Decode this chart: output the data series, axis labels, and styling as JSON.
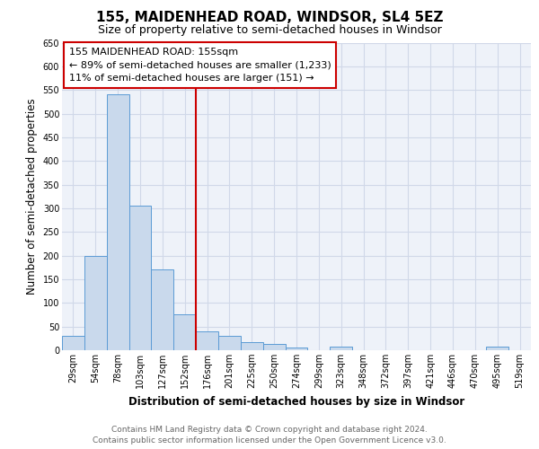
{
  "title_line1": "155, MAIDENHEAD ROAD, WINDSOR, SL4 5EZ",
  "title_line2": "Size of property relative to semi-detached houses in Windsor",
  "xlabel": "Distribution of semi-detached houses by size in Windsor",
  "ylabel": "Number of semi-detached properties",
  "categories": [
    "29sqm",
    "54sqm",
    "78sqm",
    "103sqm",
    "127sqm",
    "152sqm",
    "176sqm",
    "201sqm",
    "225sqm",
    "250sqm",
    "274sqm",
    "299sqm",
    "323sqm",
    "348sqm",
    "372sqm",
    "397sqm",
    "421sqm",
    "446sqm",
    "470sqm",
    "495sqm",
    "519sqm"
  ],
  "values": [
    30,
    200,
    540,
    305,
    170,
    75,
    40,
    30,
    18,
    14,
    5,
    0,
    7,
    0,
    0,
    0,
    0,
    0,
    0,
    7,
    0
  ],
  "bar_color": "#c9d9ec",
  "bar_edge_color": "#5b9bd5",
  "vline_x_index": 5,
  "vline_color": "#cc0000",
  "annotation_box_color": "#cc0000",
  "annotation_text_line1": "155 MAIDENHEAD ROAD: 155sqm",
  "annotation_text_line2": "← 89% of semi-detached houses are smaller (1,233)",
  "annotation_text_line3": "11% of semi-detached houses are larger (151) →",
  "ylim": [
    0,
    650
  ],
  "yticks": [
    0,
    50,
    100,
    150,
    200,
    250,
    300,
    350,
    400,
    450,
    500,
    550,
    600,
    650
  ],
  "grid_color": "#d0d8e8",
  "bg_color": "#eef2f9",
  "footer_line1": "Contains HM Land Registry data © Crown copyright and database right 2024.",
  "footer_line2": "Contains public sector information licensed under the Open Government Licence v3.0.",
  "title_fontsize": 11,
  "subtitle_fontsize": 9,
  "axis_label_fontsize": 8.5,
  "tick_fontsize": 7,
  "annotation_fontsize": 8,
  "footer_fontsize": 6.5
}
